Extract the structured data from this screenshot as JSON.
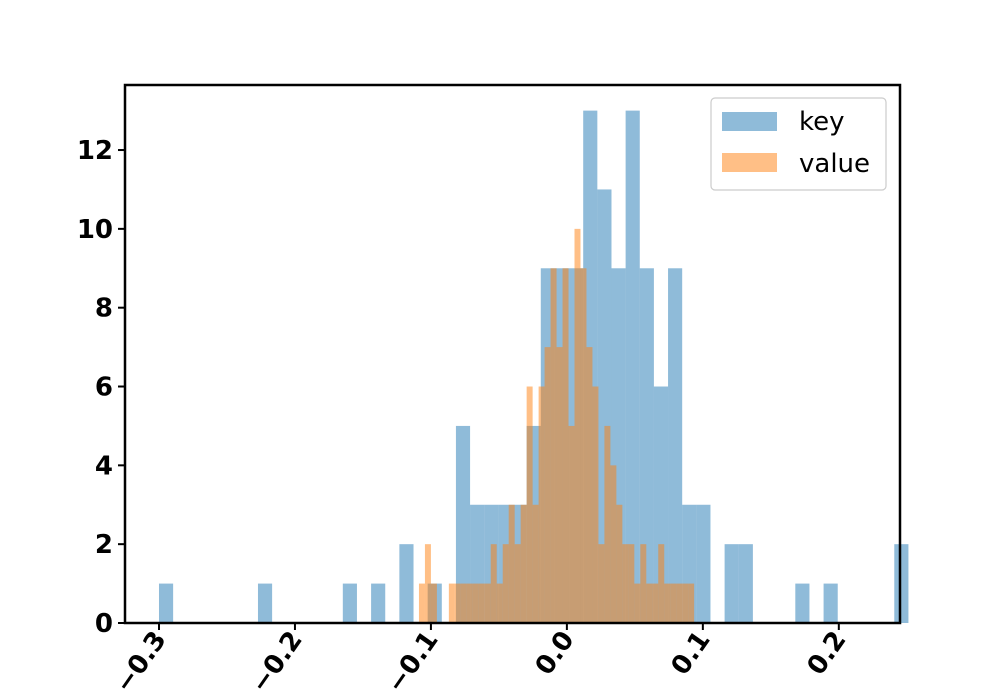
{
  "chart_data": {
    "type": "histogram",
    "xlim": [
      -0.325,
      0.245
    ],
    "ylim": [
      0,
      13.65
    ],
    "x_ticks": [
      -0.3,
      -0.2,
      -0.1,
      0.0,
      0.1,
      0.2
    ],
    "x_tick_labels": [
      "−0.3",
      "−0.2",
      "−0.1",
      "0.0",
      "0.1",
      "0.2"
    ],
    "y_ticks": [
      0,
      2,
      4,
      6,
      8,
      10,
      12
    ],
    "y_tick_labels": [
      "0",
      "2",
      "4",
      "6",
      "8",
      "10",
      "12"
    ],
    "legend": {
      "position": "top-right"
    },
    "series": [
      {
        "name": "key",
        "color": "#1f77b4",
        "opacity": 0.5,
        "bin_start": -0.3,
        "bin_width": 0.0104,
        "counts": [
          1,
          0,
          0,
          0,
          0,
          0,
          0,
          1,
          0,
          0,
          0,
          0,
          0,
          1,
          0,
          1,
          0,
          2,
          0,
          1,
          0,
          5,
          3,
          3,
          3,
          3,
          5,
          9,
          9,
          9,
          13,
          11,
          9,
          13,
          9,
          6,
          9,
          3,
          3,
          0,
          2,
          2,
          0,
          0,
          0,
          1,
          0,
          1,
          0,
          0,
          0,
          0,
          2
        ]
      },
      {
        "name": "value",
        "color": "#ff7f0e",
        "opacity": 0.5,
        "bins": [
          {
            "x0": -0.1088,
            "x1": -0.1044,
            "y": 1
          },
          {
            "x0": -0.1044,
            "x1": -0.1,
            "y": 2
          },
          {
            "x0": -0.1,
            "x1": -0.0956,
            "y": 1
          },
          {
            "x0": -0.0868,
            "x1": -0.0824,
            "y": 1
          },
          {
            "x0": -0.0824,
            "x1": -0.078,
            "y": 1
          },
          {
            "x0": -0.078,
            "x1": -0.0736,
            "y": 1
          },
          {
            "x0": -0.0736,
            "x1": -0.0692,
            "y": 1
          },
          {
            "x0": -0.0692,
            "x1": -0.0648,
            "y": 1
          },
          {
            "x0": -0.0648,
            "x1": -0.0604,
            "y": 1
          },
          {
            "x0": -0.0604,
            "x1": -0.056,
            "y": 1
          },
          {
            "x0": -0.056,
            "x1": -0.0516,
            "y": 2
          },
          {
            "x0": -0.0516,
            "x1": -0.0472,
            "y": 1
          },
          {
            "x0": -0.0472,
            "x1": -0.0428,
            "y": 2
          },
          {
            "x0": -0.0428,
            "x1": -0.0384,
            "y": 3
          },
          {
            "x0": -0.0384,
            "x1": -0.034,
            "y": 2
          },
          {
            "x0": -0.034,
            "x1": -0.0296,
            "y": 3
          },
          {
            "x0": -0.0296,
            "x1": -0.0252,
            "y": 6
          },
          {
            "x0": -0.0252,
            "x1": -0.0208,
            "y": 3
          },
          {
            "x0": -0.0208,
            "x1": -0.0164,
            "y": 6
          },
          {
            "x0": -0.0164,
            "x1": -0.012,
            "y": 7
          },
          {
            "x0": -0.012,
            "x1": -0.0076,
            "y": 9
          },
          {
            "x0": -0.0076,
            "x1": -0.0032,
            "y": 7
          },
          {
            "x0": -0.0032,
            "x1": 0.0012,
            "y": 9
          },
          {
            "x0": 0.0012,
            "x1": 0.0056,
            "y": 5
          },
          {
            "x0": 0.0056,
            "x1": 0.01,
            "y": 10
          },
          {
            "x0": 0.01,
            "x1": 0.0144,
            "y": 9
          },
          {
            "x0": 0.0144,
            "x1": 0.0188,
            "y": 7
          },
          {
            "x0": 0.0188,
            "x1": 0.0232,
            "y": 6
          },
          {
            "x0": 0.0232,
            "x1": 0.0276,
            "y": 2
          },
          {
            "x0": 0.0276,
            "x1": 0.032,
            "y": 5
          },
          {
            "x0": 0.032,
            "x1": 0.0364,
            "y": 4
          },
          {
            "x0": 0.0364,
            "x1": 0.0408,
            "y": 3
          },
          {
            "x0": 0.0408,
            "x1": 0.0452,
            "y": 2
          },
          {
            "x0": 0.0452,
            "x1": 0.0496,
            "y": 2
          },
          {
            "x0": 0.0496,
            "x1": 0.054,
            "y": 1
          },
          {
            "x0": 0.054,
            "x1": 0.0584,
            "y": 2
          },
          {
            "x0": 0.0584,
            "x1": 0.0628,
            "y": 1
          },
          {
            "x0": 0.0628,
            "x1": 0.0672,
            "y": 1
          },
          {
            "x0": 0.0672,
            "x1": 0.0716,
            "y": 2
          },
          {
            "x0": 0.0716,
            "x1": 0.076,
            "y": 1
          },
          {
            "x0": 0.076,
            "x1": 0.0804,
            "y": 1
          },
          {
            "x0": 0.0804,
            "x1": 0.0848,
            "y": 1
          },
          {
            "x0": 0.0848,
            "x1": 0.0892,
            "y": 1
          },
          {
            "x0": 0.0892,
            "x1": 0.0936,
            "y": 1
          }
        ]
      }
    ]
  }
}
